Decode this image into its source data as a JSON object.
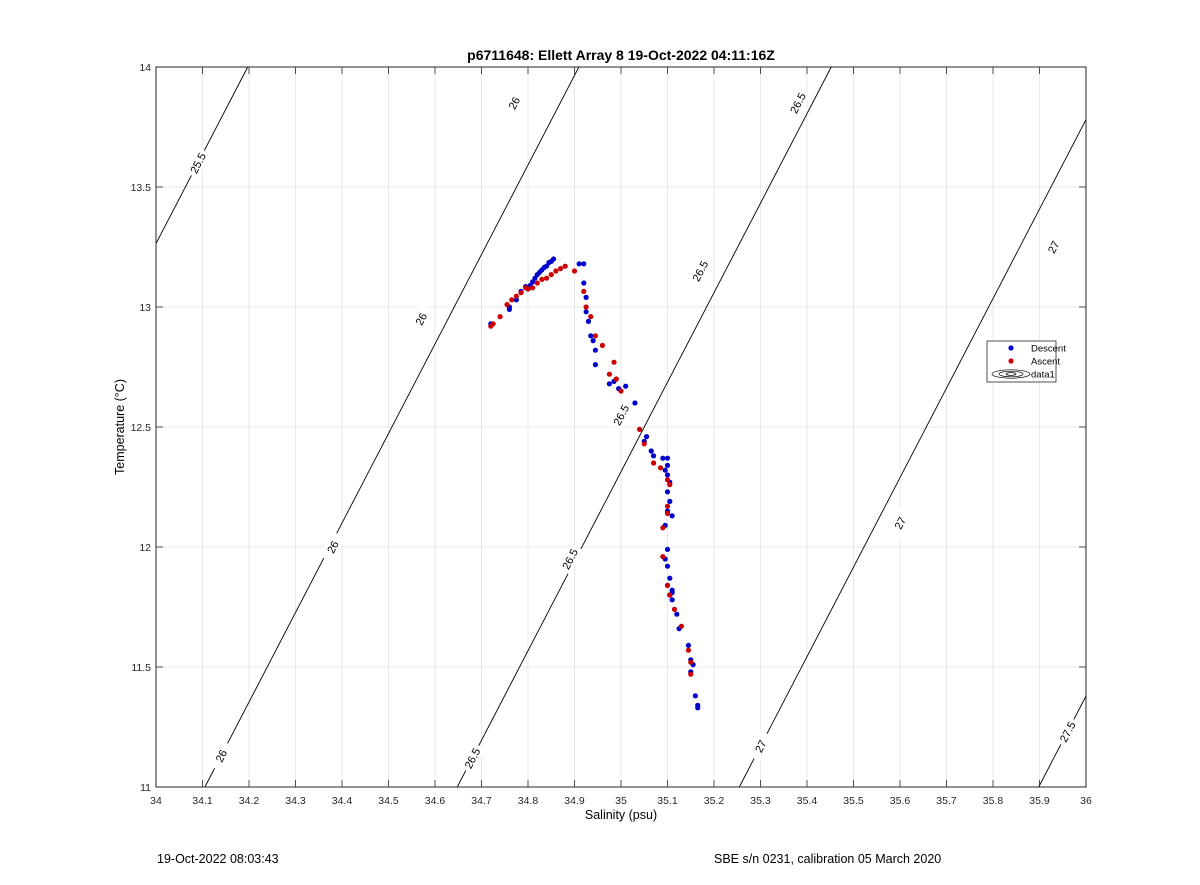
{
  "chart_data": {
    "type": "scatter",
    "title": "p6711648: Ellett Array 8 19-Oct-2022 04:11:16Z",
    "xlabel": "Salinity (psu)",
    "ylabel": "Temperature (°C)",
    "xlim": [
      34,
      36
    ],
    "ylim": [
      11,
      14
    ],
    "xticks": [
      34,
      34.1,
      34.2,
      34.3,
      34.4,
      34.5,
      34.6,
      34.7,
      34.8,
      34.9,
      35,
      35.1,
      35.2,
      35.3,
      35.4,
      35.5,
      35.6,
      35.7,
      35.8,
      35.9,
      36
    ],
    "xtick_labels": [
      "34",
      "34.1",
      "34.2",
      "34.3",
      "34.4",
      "34.5",
      "34.6",
      "34.7",
      "34.8",
      "34.9",
      "35",
      "35.1",
      "35.2",
      "35.3",
      "35.4",
      "35.5",
      "35.6",
      "35.7",
      "35.8",
      "35.9",
      "36"
    ],
    "yticks": [
      11,
      11.5,
      12,
      12.5,
      13,
      13.5,
      14
    ],
    "ytick_labels": [
      "11",
      "11.5",
      "12",
      "12.5",
      "13",
      "13.5",
      "14"
    ],
    "grid": true,
    "legend_position": "right",
    "series": [
      {
        "name": "Descent",
        "color": "#0000cc",
        "points": [
          [
            34.855,
            13.2
          ],
          [
            34.85,
            13.19
          ],
          [
            34.845,
            13.185
          ],
          [
            34.84,
            13.17
          ],
          [
            34.835,
            13.165
          ],
          [
            34.83,
            13.155
          ],
          [
            34.825,
            13.145
          ],
          [
            34.82,
            13.135
          ],
          [
            34.815,
            13.12
          ],
          [
            34.81,
            13.105
          ],
          [
            34.805,
            13.09
          ],
          [
            34.795,
            13.085
          ],
          [
            34.785,
            13.065
          ],
          [
            34.775,
            13.03
          ],
          [
            34.76,
            13.0
          ],
          [
            34.76,
            12.99
          ],
          [
            34.72,
            12.93
          ],
          [
            34.91,
            13.18
          ],
          [
            34.92,
            13.18
          ],
          [
            34.92,
            13.1
          ],
          [
            34.925,
            13.04
          ],
          [
            34.925,
            12.98
          ],
          [
            34.93,
            12.94
          ],
          [
            34.935,
            12.88
          ],
          [
            34.94,
            12.86
          ],
          [
            34.945,
            12.82
          ],
          [
            34.945,
            12.76
          ],
          [
            34.975,
            12.68
          ],
          [
            34.985,
            12.69
          ],
          [
            34.995,
            12.66
          ],
          [
            35.01,
            12.67
          ],
          [
            35.03,
            12.6
          ],
          [
            35.05,
            12.44
          ],
          [
            35.055,
            12.46
          ],
          [
            35.065,
            12.4
          ],
          [
            35.07,
            12.38
          ],
          [
            35.09,
            12.37
          ],
          [
            35.1,
            12.37
          ],
          [
            35.1,
            12.34
          ],
          [
            35.095,
            12.32
          ],
          [
            35.1,
            12.3
          ],
          [
            35.105,
            12.27
          ],
          [
            35.1,
            12.23
          ],
          [
            35.105,
            12.19
          ],
          [
            35.11,
            12.13
          ],
          [
            35.1,
            12.15
          ],
          [
            35.095,
            12.09
          ],
          [
            35.1,
            11.99
          ],
          [
            35.095,
            11.95
          ],
          [
            35.1,
            11.92
          ],
          [
            35.105,
            11.87
          ],
          [
            35.1,
            11.84
          ],
          [
            35.11,
            11.82
          ],
          [
            35.11,
            11.81
          ],
          [
            35.105,
            11.8
          ],
          [
            35.11,
            11.78
          ],
          [
            35.12,
            11.72
          ],
          [
            35.125,
            11.66
          ],
          [
            35.145,
            11.59
          ],
          [
            35.15,
            11.53
          ],
          [
            35.155,
            11.51
          ],
          [
            35.15,
            11.48
          ],
          [
            35.16,
            11.38
          ],
          [
            35.165,
            11.34
          ],
          [
            35.165,
            11.33
          ]
        ]
      },
      {
        "name": "Ascent",
        "color": "#cc0000",
        "points": [
          [
            34.72,
            12.92
          ],
          [
            34.725,
            12.93
          ],
          [
            34.74,
            12.96
          ],
          [
            34.755,
            13.01
          ],
          [
            34.765,
            13.03
          ],
          [
            34.775,
            13.045
          ],
          [
            34.785,
            13.06
          ],
          [
            34.795,
            13.08
          ],
          [
            34.8,
            13.075
          ],
          [
            34.81,
            13.08
          ],
          [
            34.82,
            13.1
          ],
          [
            34.83,
            13.115
          ],
          [
            34.84,
            13.12
          ],
          [
            34.85,
            13.135
          ],
          [
            34.86,
            13.15
          ],
          [
            34.87,
            13.16
          ],
          [
            34.88,
            13.17
          ],
          [
            34.9,
            13.15
          ],
          [
            34.92,
            13.065
          ],
          [
            34.925,
            13.0
          ],
          [
            34.935,
            12.96
          ],
          [
            34.945,
            12.88
          ],
          [
            34.96,
            12.84
          ],
          [
            34.975,
            12.72
          ],
          [
            34.985,
            12.77
          ],
          [
            34.99,
            12.7
          ],
          [
            35.0,
            12.65
          ],
          [
            35.04,
            12.49
          ],
          [
            35.05,
            12.43
          ],
          [
            35.07,
            12.35
          ],
          [
            35.085,
            12.33
          ],
          [
            35.1,
            12.28
          ],
          [
            35.105,
            12.26
          ],
          [
            35.1,
            12.17
          ],
          [
            35.1,
            12.14
          ],
          [
            35.09,
            12.08
          ],
          [
            35.09,
            11.96
          ],
          [
            35.1,
            11.84
          ],
          [
            35.105,
            11.8
          ],
          [
            35.115,
            11.74
          ],
          [
            35.13,
            11.67
          ],
          [
            35.145,
            11.57
          ],
          [
            35.15,
            11.52
          ],
          [
            35.15,
            11.47
          ]
        ]
      }
    ],
    "legend": [
      {
        "label": "Descent",
        "color": "#0000cc"
      },
      {
        "label": "Ascent",
        "color": "#cc0000"
      },
      {
        "label": "data1",
        "color": "#000000"
      }
    ],
    "contours": [
      {
        "label": "25.5",
        "base_temp": 15.75,
        "slope": 3.73,
        "label_at": [
          34.09,
          13.6
        ]
      },
      {
        "label": "26",
        "base_temp": 22.65,
        "slope": 3.73,
        "label_at": [
          34.14,
          11.13
        ]
      },
      {
        "label": "26",
        "base_temp": 22.65,
        "slope": 3.73,
        "label_at": [
          34.38,
          12.0
        ]
      },
      {
        "label": "26",
        "base_temp": 22.65,
        "slope": 3.73,
        "label_at": [
          34.57,
          12.95
        ]
      },
      {
        "label": "26",
        "base_temp": 22.65,
        "slope": 3.73,
        "label_at": [
          34.77,
          13.85
        ]
      },
      {
        "label": "26",
        "base_temp": 22.65,
        "slope": 3.73,
        "label_at": [
          34.99,
          14.75
        ]
      },
      {
        "label": "26.5",
        "base_temp": 29.55,
        "slope": 3.73,
        "label_at": [
          34.68,
          11.12
        ]
      },
      {
        "label": "26.5",
        "base_temp": 29.55,
        "slope": 3.73,
        "label_at": [
          34.89,
          11.95
        ]
      },
      {
        "label": "26.5",
        "base_temp": 29.55,
        "slope": 3.73,
        "label_at": [
          35.0,
          12.55
        ]
      },
      {
        "label": "26.5",
        "base_temp": 29.55,
        "slope": 3.73,
        "label_at": [
          35.17,
          13.15
        ]
      },
      {
        "label": "26.5",
        "base_temp": 29.55,
        "slope": 3.73,
        "label_at": [
          35.38,
          13.85
        ]
      },
      {
        "label": "27",
        "base_temp": 36.45,
        "slope": 3.73,
        "label_at": [
          35.3,
          11.17
        ]
      },
      {
        "label": "27",
        "base_temp": 36.45,
        "slope": 3.73,
        "label_at": [
          35.6,
          12.1
        ]
      },
      {
        "label": "27",
        "base_temp": 36.45,
        "slope": 3.73,
        "label_at": [
          35.8,
          12.78
        ]
      },
      {
        "label": "27",
        "base_temp": 36.45,
        "slope": 3.73,
        "label_at": [
          35.93,
          13.25
        ]
      },
      {
        "label": "27.5",
        "base_temp": 43.35,
        "slope": 3.73,
        "label_at": [
          35.96,
          11.23
        ]
      }
    ]
  },
  "footer": {
    "timestamp": "19-Oct-2022 08:03:43",
    "instrument": "SBE s/n 0231, calibration 05 March 2020"
  }
}
